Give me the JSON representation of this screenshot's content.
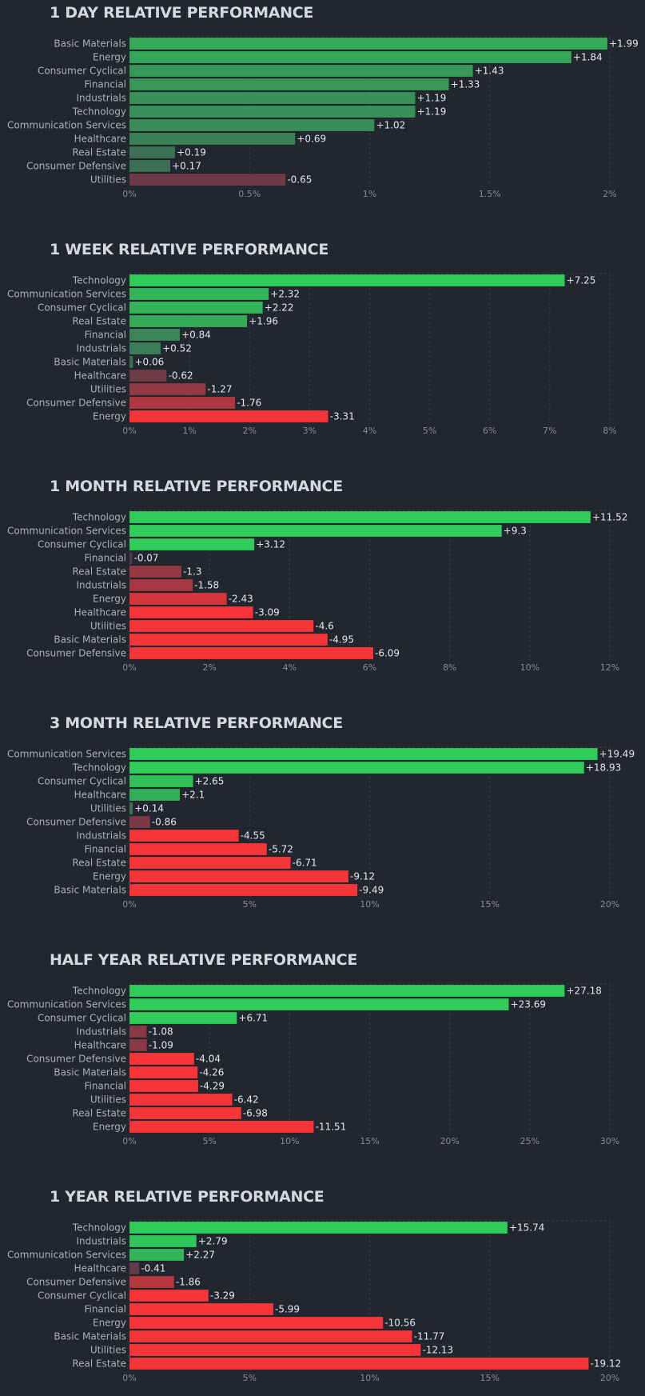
{
  "chart_data": [
    {
      "type": "bar",
      "orientation": "horizontal",
      "title": "1 DAY RELATIVE PERFORMANCE",
      "categories": [
        "Basic Materials",
        "Energy",
        "Consumer Cyclical",
        "Financial",
        "Industrials",
        "Technology",
        "Communication Services",
        "Healthcare",
        "Real Estate",
        "Consumer Defensive",
        "Utilities"
      ],
      "values": [
        1.99,
        1.84,
        1.43,
        1.33,
        1.19,
        1.19,
        1.02,
        0.69,
        0.19,
        0.17,
        -0.65
      ],
      "value_labels": [
        "+1.99",
        "+1.84",
        "+1.43",
        "+1.33",
        "+1.19",
        "+1.19",
        "+1.02",
        "+0.69",
        "+0.19",
        "+0.17",
        "-0.65"
      ],
      "xlim": [
        0,
        2
      ],
      "ticks": [
        0,
        0.5,
        1,
        1.5,
        2
      ],
      "tick_labels": [
        "0%",
        "0.5%",
        "1%",
        "1.5%",
        "2%"
      ],
      "grid": true
    },
    {
      "type": "bar",
      "orientation": "horizontal",
      "title": "1 WEEK RELATIVE PERFORMANCE",
      "categories": [
        "Technology",
        "Communication Services",
        "Consumer Cyclical",
        "Real Estate",
        "Financial",
        "Industrials",
        "Basic Materials",
        "Healthcare",
        "Utilities",
        "Consumer Defensive",
        "Energy"
      ],
      "values": [
        7.25,
        2.32,
        2.22,
        1.96,
        0.84,
        0.52,
        0.06,
        -0.62,
        -1.27,
        -1.76,
        -3.31
      ],
      "value_labels": [
        "+7.25",
        "+2.32",
        "+2.22",
        "+1.96",
        "+0.84",
        "+0.52",
        "+0.06",
        "-0.62",
        "-1.27",
        "-1.76",
        "-3.31"
      ],
      "xlim": [
        0,
        8
      ],
      "ticks": [
        0,
        1,
        2,
        3,
        4,
        5,
        6,
        7,
        8
      ],
      "tick_labels": [
        "0%",
        "1%",
        "2%",
        "3%",
        "4%",
        "5%",
        "6%",
        "7%",
        "8%"
      ],
      "grid": true
    },
    {
      "type": "bar",
      "orientation": "horizontal",
      "title": "1 MONTH RELATIVE PERFORMANCE",
      "categories": [
        "Technology",
        "Communication Services",
        "Consumer Cyclical",
        "Financial",
        "Real Estate",
        "Industrials",
        "Energy",
        "Healthcare",
        "Utilities",
        "Basic Materials",
        "Consumer Defensive"
      ],
      "values": [
        11.52,
        9.3,
        3.12,
        -0.07,
        -1.3,
        -1.58,
        -2.43,
        -3.09,
        -4.6,
        -4.95,
        -6.09
      ],
      "value_labels": [
        "+11.52",
        "+9.3",
        "+3.12",
        "-0.07",
        "-1.3",
        "-1.58",
        "-2.43",
        "-3.09",
        "-4.6",
        "-4.95",
        "-6.09"
      ],
      "xlim": [
        0,
        12
      ],
      "ticks": [
        0,
        2,
        4,
        6,
        8,
        10,
        12
      ],
      "tick_labels": [
        "0%",
        "2%",
        "4%",
        "6%",
        "8%",
        "10%",
        "12%"
      ],
      "grid": true
    },
    {
      "type": "bar",
      "orientation": "horizontal",
      "title": "3 MONTH RELATIVE PERFORMANCE",
      "categories": [
        "Communication Services",
        "Technology",
        "Consumer Cyclical",
        "Healthcare",
        "Utilities",
        "Consumer Defensive",
        "Industrials",
        "Financial",
        "Real Estate",
        "Energy",
        "Basic Materials"
      ],
      "values": [
        19.49,
        18.93,
        2.65,
        2.1,
        0.14,
        -0.86,
        -4.55,
        -5.72,
        -6.71,
        -9.12,
        -9.49
      ],
      "value_labels": [
        "+19.49",
        "+18.93",
        "+2.65",
        "+2.1",
        "+0.14",
        "-0.86",
        "-4.55",
        "-5.72",
        "-6.71",
        "-9.12",
        "-9.49"
      ],
      "xlim": [
        0,
        20
      ],
      "ticks": [
        0,
        5,
        10,
        15,
        20
      ],
      "tick_labels": [
        "0%",
        "5%",
        "10%",
        "15%",
        "20%"
      ],
      "grid": true
    },
    {
      "type": "bar",
      "orientation": "horizontal",
      "title": "HALF YEAR RELATIVE PERFORMANCE",
      "categories": [
        "Technology",
        "Communication Services",
        "Consumer Cyclical",
        "Industrials",
        "Healthcare",
        "Consumer Defensive",
        "Basic Materials",
        "Financial",
        "Utilities",
        "Real Estate",
        "Energy"
      ],
      "values": [
        27.18,
        23.69,
        6.71,
        -1.08,
        -1.09,
        -4.04,
        -4.26,
        -4.29,
        -6.42,
        -6.98,
        -11.51
      ],
      "value_labels": [
        "+27.18",
        "+23.69",
        "+6.71",
        "-1.08",
        "-1.09",
        "-4.04",
        "-4.26",
        "-4.29",
        "-6.42",
        "-6.98",
        "-11.51"
      ],
      "xlim": [
        0,
        30
      ],
      "ticks": [
        0,
        5,
        10,
        15,
        20,
        25,
        30
      ],
      "tick_labels": [
        "0%",
        "5%",
        "10%",
        "15%",
        "20%",
        "25%",
        "30%"
      ],
      "grid": true
    },
    {
      "type": "bar",
      "orientation": "horizontal",
      "title": "1 YEAR RELATIVE PERFORMANCE",
      "categories": [
        "Technology",
        "Industrials",
        "Communication Services",
        "Healthcare",
        "Consumer Defensive",
        "Consumer Cyclical",
        "Financial",
        "Energy",
        "Basic Materials",
        "Utilities",
        "Real Estate"
      ],
      "values": [
        15.74,
        2.79,
        2.27,
        -0.41,
        -1.86,
        -3.29,
        -5.99,
        -10.56,
        -11.77,
        -12.13,
        -19.12
      ],
      "value_labels": [
        "+15.74",
        "+2.79",
        "+2.27",
        "-0.41",
        "-1.86",
        "-3.29",
        "-5.99",
        "-10.56",
        "-11.77",
        "-12.13",
        "-19.12"
      ],
      "xlim": [
        0,
        20
      ],
      "ticks": [
        0,
        5,
        10,
        15,
        20
      ],
      "tick_labels": [
        "0%",
        "5%",
        "10%",
        "15%",
        "20%"
      ],
      "grid": true
    }
  ],
  "colors": {
    "positive_strong": "#30cc5a",
    "positive_weak": "#3e6b55",
    "negative_weak": "#4a3c4b",
    "negative_strong": "#f63538",
    "grid": "#3a3f4a",
    "background": "#22262f"
  }
}
